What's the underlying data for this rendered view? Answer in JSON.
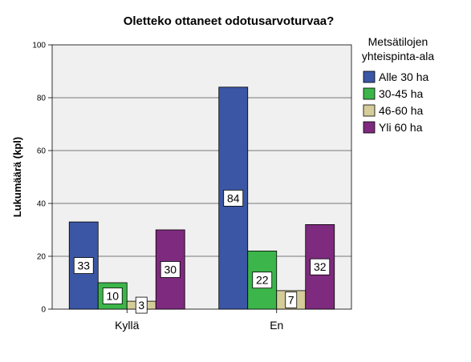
{
  "chart_data": {
    "type": "bar",
    "title": "Oletteko ottaneet odotusarvoturvaa?",
    "xlabel": "",
    "ylabel": "Lukumäärä (kpl)",
    "ylim": [
      0,
      100
    ],
    "yticks": [
      0,
      20,
      40,
      60,
      80,
      100
    ],
    "grid": true,
    "categories": [
      "Kyllä",
      "En"
    ],
    "legend": {
      "title_lines": [
        "Metsätilojen",
        "yhteispinta-ala"
      ],
      "placement": "right"
    },
    "series": [
      {
        "name": "Alle 30 ha",
        "color": "#3b56a5",
        "values": [
          33,
          84
        ]
      },
      {
        "name": "30-45 ha",
        "color": "#3cb64a",
        "values": [
          10,
          22
        ]
      },
      {
        "name": "46-60 ha",
        "color": "#d4cc99",
        "values": [
          3,
          7
        ]
      },
      {
        "name": "Yli 60 ha",
        "color": "#7e2a7e",
        "values": [
          30,
          32
        ]
      }
    ],
    "plot_background": "#f0f0f0"
  }
}
